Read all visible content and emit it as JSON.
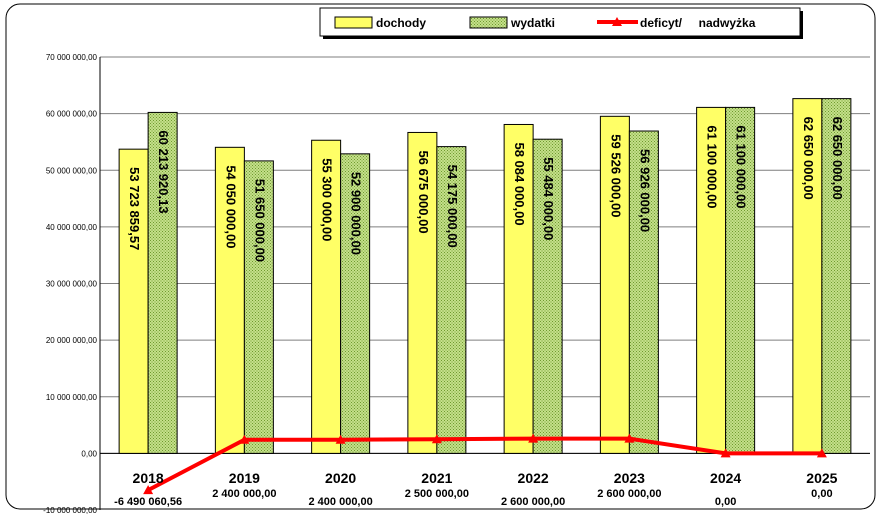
{
  "chart_data": {
    "type": "bar",
    "categories": [
      "2018",
      "2019",
      "2020",
      "2021",
      "2022",
      "2023",
      "2024",
      "2025"
    ],
    "series": [
      {
        "name": "dochody",
        "kind": "bar",
        "color": "#ffff66",
        "values": [
          53723859.57,
          54050000.0,
          55300000.0,
          56675000.0,
          58084000.0,
          59526000.0,
          61100000.0,
          62650000.0
        ],
        "labels": [
          "53 723 859,57",
          "54 050 000,00",
          "55 300 000,00",
          "56 675 000,00",
          "58 084 000,00",
          "59 526 000,00",
          "61 100 000,00",
          "62 650 000,00"
        ]
      },
      {
        "name": "wydatki",
        "kind": "bar",
        "color": "#b5d878",
        "values": [
          60213920.13,
          51650000.0,
          52900000.0,
          54175000.0,
          55484000.0,
          56926000.0,
          61100000.0,
          62650000.0
        ],
        "labels": [
          "60 213 920,13",
          "51 650 000,00",
          "52 900 000,00",
          "54 175 000,00",
          "55 484 000,00",
          "56 926 000,00",
          "61 100 000,00",
          "62 650 000,00"
        ]
      },
      {
        "name": "deficyt/     nadwyżka",
        "kind": "line",
        "color": "#ff0000",
        "values": [
          -6490060.56,
          2400000.0,
          2400000.0,
          2500000.0,
          2600000.0,
          2600000.0,
          0.0,
          0.0
        ],
        "labels": [
          "-6 490 060,56",
          "2 400 000,00",
          "2 400 000,00",
          "2 500 000,00",
          "2 600 000,00",
          "2 600 000,00",
          "0,00",
          "0,00"
        ]
      }
    ],
    "ylim": [
      -10000000,
      70000000
    ],
    "yticks": [
      {
        "value": 70000000,
        "label": "70 000 000,00"
      },
      {
        "value": 60000000,
        "label": "60 000 000,00"
      },
      {
        "value": 50000000,
        "label": "50 000 000,00"
      },
      {
        "value": 40000000,
        "label": "40 000 000,00"
      },
      {
        "value": 30000000,
        "label": "30 000 000,00"
      },
      {
        "value": 20000000,
        "label": "20 000 000,00"
      },
      {
        "value": 10000000,
        "label": "10 000 000,00"
      },
      {
        "value": 0,
        "label": "0,00"
      },
      {
        "value": -10000000,
        "label": "-10 000 000,00"
      }
    ],
    "title": "",
    "xlabel": "",
    "ylabel": "",
    "grid": true,
    "legend_position": "top-right"
  }
}
